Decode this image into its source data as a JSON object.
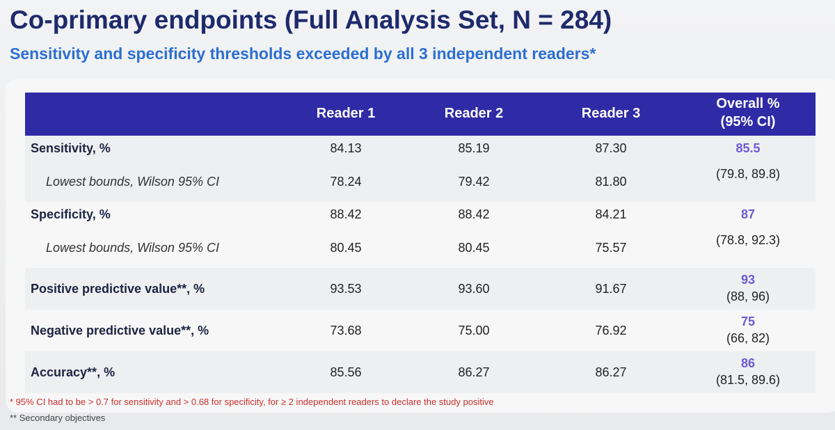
{
  "title": "Co-primary endpoints (Full Analysis Set, N = 284)",
  "subtitle": "Sensitivity and specificity thresholds exceeded by all 3 independent readers*",
  "table": {
    "header": {
      "columns": [
        "Reader 1",
        "Reader 2",
        "Reader 3"
      ],
      "overall": [
        "Overall %",
        "(95% CI)"
      ]
    },
    "groups": [
      {
        "label": "Sensitivity, %",
        "values": [
          "84.13",
          "85.19",
          "87.30"
        ],
        "overall": "85.5",
        "ci": "(79.8, 89.8)",
        "sub_label": "Lowest bounds, Wilson 95% CI",
        "sub_values": [
          "78.24",
          "79.42",
          "81.80"
        ]
      },
      {
        "label": "Specificity, %",
        "values": [
          "88.42",
          "88.42",
          "84.21"
        ],
        "overall": "87",
        "ci": "(78.8, 92.3)",
        "sub_label": "Lowest bounds, Wilson 95% CI",
        "sub_values": [
          "80.45",
          "80.45",
          "75.57"
        ]
      },
      {
        "label": "Positive predictive value**, %",
        "values": [
          "93.53",
          "93.60",
          "91.67"
        ],
        "overall": "93",
        "ci": "(88, 96)"
      },
      {
        "label": "Negative predictive value**, %",
        "values": [
          "73.68",
          "75.00",
          "76.92"
        ],
        "overall": "75",
        "ci": "(66, 82)"
      },
      {
        "label": "Accuracy**, %",
        "values": [
          "85.56",
          "86.27",
          "86.27"
        ],
        "overall": "86",
        "ci": "(81.5, 89.6)"
      }
    ]
  },
  "footnotes": [
    "* 95% CI had to be > 0.7 for sensitivity and > 0.68 for specificity, for ≥ 2 independent readers to declare the study positive",
    "** Secondary objectives"
  ]
}
